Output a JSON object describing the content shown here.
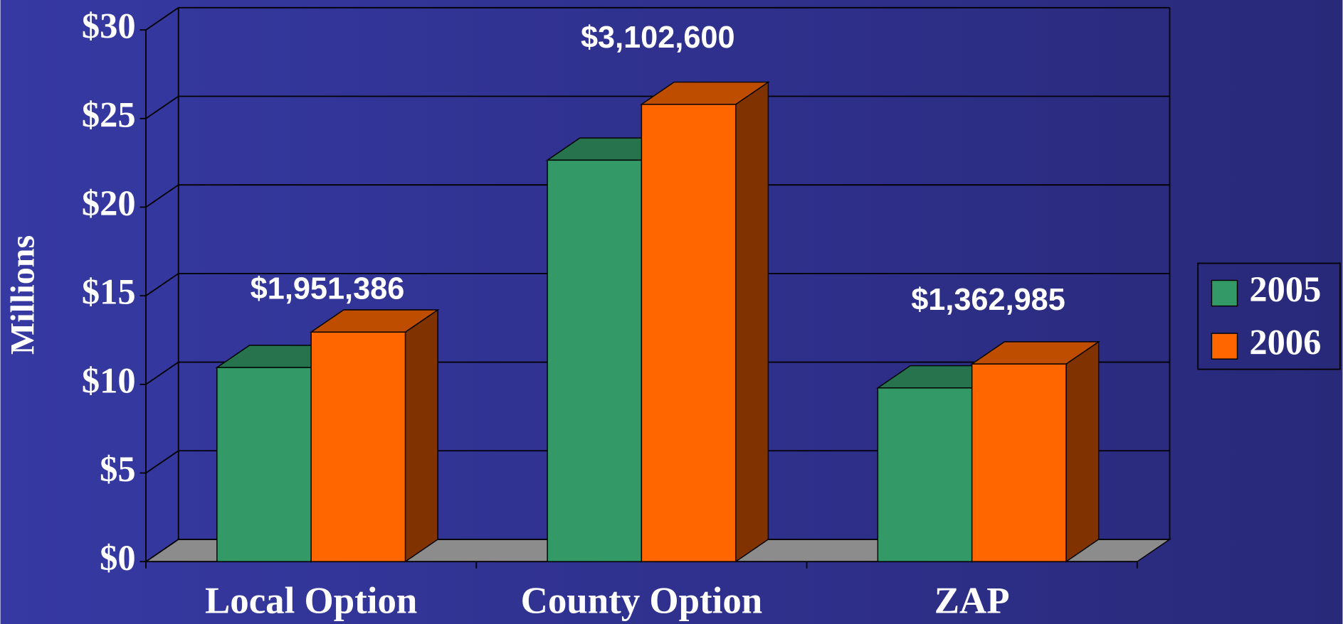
{
  "chart_data": {
    "type": "bar3d",
    "y_axis_label": "Millions",
    "categories": [
      "Local Option",
      "County Option",
      "ZAP"
    ],
    "series": [
      {
        "name": "2005",
        "color": "#339966",
        "values": [
          10.95,
          22.65,
          9.8
        ]
      },
      {
        "name": "2006",
        "color": "#ff6600",
        "values": [
          12.95,
          25.8,
          11.15
        ]
      }
    ],
    "annotations": [
      "$1,951,386",
      "$3,102,600",
      "$1,362,985"
    ],
    "ylim": [
      0,
      30
    ],
    "yticks": [
      {
        "value": 0,
        "label": "$0"
      },
      {
        "value": 5,
        "label": "$5"
      },
      {
        "value": 10,
        "label": "$10"
      },
      {
        "value": 15,
        "label": "$15"
      },
      {
        "value": 20,
        "label": "$20"
      },
      {
        "value": 25,
        "label": "$25"
      },
      {
        "value": 30,
        "label": "$30"
      }
    ],
    "grid": true,
    "legend": "right"
  }
}
